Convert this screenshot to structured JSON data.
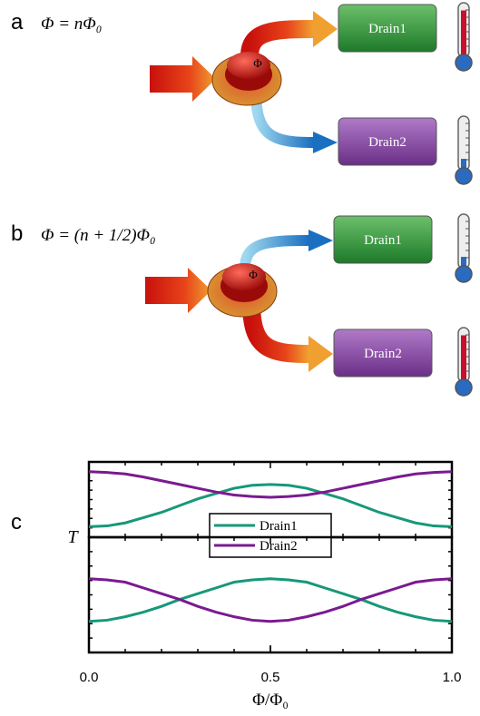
{
  "diagram": {
    "panels": [
      {
        "label": "a",
        "equation": "Φ = nΦ₀",
        "knob": "Φ",
        "drains": [
          "Drain1",
          "Drain2"
        ]
      },
      {
        "label": "b",
        "equation": "Φ = (n + 1/2)Φ₀",
        "knob": "Φ",
        "drains": [
          "Drain1",
          "Drain2"
        ]
      }
    ],
    "panel_c_label": "c"
  },
  "chart_data": [
    {
      "type": "line",
      "ylabel": "T",
      "legend": "bottom center",
      "x": [
        0,
        0.05,
        0.1,
        0.15,
        0.2,
        0.25,
        0.3,
        0.35,
        0.4,
        0.45,
        0.5,
        0.55,
        0.6,
        0.65,
        0.7,
        0.75,
        0.8,
        0.85,
        0.9,
        0.95,
        1
      ],
      "xlim": [
        0,
        1
      ],
      "ylim": [
        0,
        1
      ],
      "series": [
        {
          "name": "Drain1",
          "color": "#16987a",
          "values": [
            0.14,
            0.15,
            0.19,
            0.26,
            0.33,
            0.42,
            0.51,
            0.58,
            0.65,
            0.69,
            0.7,
            0.69,
            0.65,
            0.58,
            0.51,
            0.42,
            0.33,
            0.26,
            0.19,
            0.15,
            0.14
          ]
        },
        {
          "name": "Drain2",
          "color": "#7a1a90",
          "values": [
            0.87,
            0.86,
            0.84,
            0.8,
            0.75,
            0.7,
            0.65,
            0.6,
            0.56,
            0.54,
            0.53,
            0.54,
            0.56,
            0.6,
            0.65,
            0.7,
            0.75,
            0.8,
            0.84,
            0.86,
            0.87
          ]
        }
      ]
    },
    {
      "type": "line",
      "xlabel": "Φ/Φ₀",
      "x": [
        0,
        0.05,
        0.1,
        0.15,
        0.2,
        0.25,
        0.3,
        0.35,
        0.4,
        0.45,
        0.5,
        0.55,
        0.6,
        0.65,
        0.7,
        0.75,
        0.8,
        0.85,
        0.9,
        0.95,
        1
      ],
      "xlim": [
        0,
        1
      ],
      "ylim": [
        0,
        1
      ],
      "xticks": [
        {
          "value": 0,
          "label": "0.0"
        },
        0.5,
        {
          "value": 1,
          "label": "1.0"
        }
      ],
      "series": [
        {
          "color": "#16987a",
          "values": [
            0.27,
            0.28,
            0.31,
            0.35,
            0.4,
            0.46,
            0.51,
            0.56,
            0.61,
            0.63,
            0.64,
            0.63,
            0.61,
            0.56,
            0.51,
            0.46,
            0.4,
            0.35,
            0.31,
            0.28,
            0.27
          ]
        },
        {
          "color": "#7a1a90",
          "values": [
            0.64,
            0.63,
            0.61,
            0.56,
            0.51,
            0.46,
            0.4,
            0.35,
            0.31,
            0.28,
            0.27,
            0.28,
            0.31,
            0.35,
            0.4,
            0.46,
            0.51,
            0.56,
            0.61,
            0.63,
            0.64
          ]
        }
      ]
    }
  ]
}
